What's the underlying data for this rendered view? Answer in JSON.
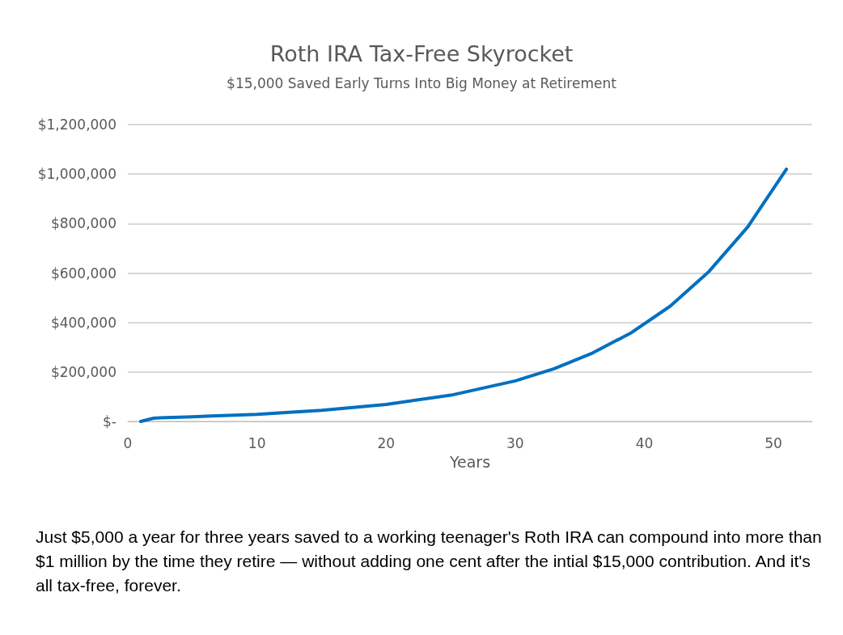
{
  "chart_data": {
    "type": "line",
    "title": "Roth IRA Tax-Free Skyrocket",
    "subtitle": "$15,000 Saved Early Turns Into Big Money at Retirement",
    "xlabel": "Years",
    "x": [
      1,
      2,
      2.5,
      5,
      10,
      15,
      20,
      25,
      30,
      33,
      36,
      39,
      42,
      45,
      48,
      51
    ],
    "series": [
      {
        "color": "#0070c0",
        "values": [
          0,
          13000,
          15000,
          19000,
          29000,
          45000,
          69000,
          106000,
          164000,
          213000,
          277000,
          359000,
          466000,
          606000,
          786000,
          1020000
        ]
      }
    ],
    "xlim": [
      0,
      53
    ],
    "xticks": [
      0,
      10,
      20,
      30,
      40,
      50
    ],
    "ylim": [
      0,
      1200000
    ],
    "yticks": [
      {
        "value": 0,
        "label": "$-"
      },
      {
        "value": 200000,
        "label": "$200,000"
      },
      {
        "value": 400000,
        "label": "$400,000"
      },
      {
        "value": 600000,
        "label": "$600,000"
      },
      {
        "value": 800000,
        "label": "$800,000"
      },
      {
        "value": 1000000,
        "label": "$1,000,000"
      },
      {
        "value": 1200000,
        "label": "$1,200,000"
      }
    ],
    "grid": "y",
    "marker": "none",
    "line_style": "solid",
    "annotations": [
      "Just $5,000 a year for three years saved to a working teenager's Roth IRA can compound into more than $1 million by the time they retire — without adding one cent after the intial $15,000 contribution. And it's all tax-free, forever."
    ]
  }
}
